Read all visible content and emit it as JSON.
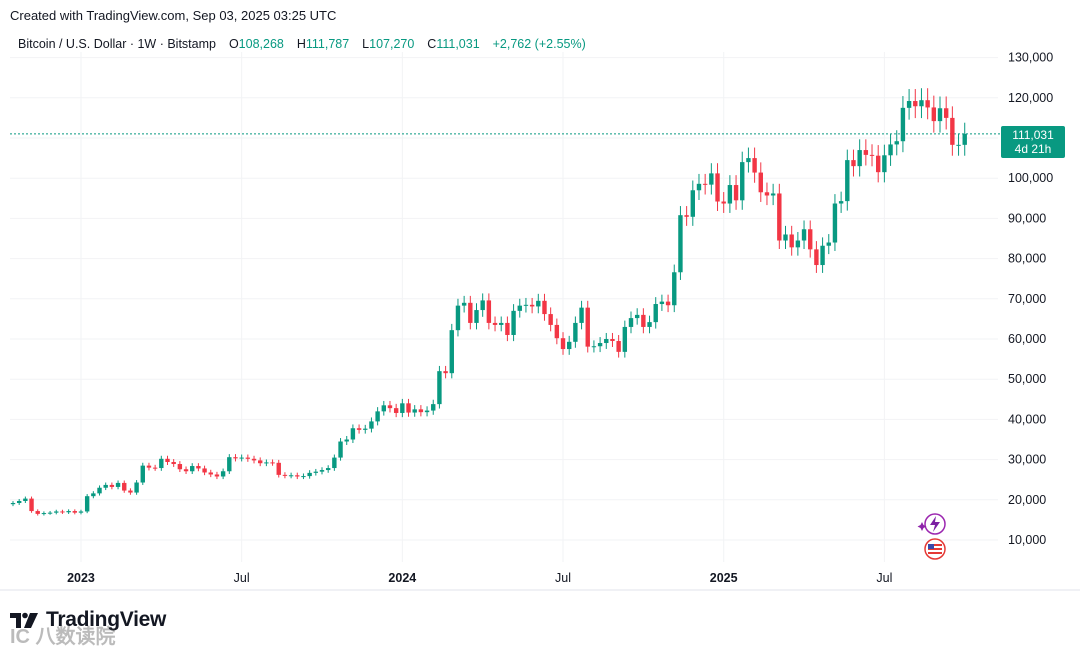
{
  "header": {
    "created_text": "Created with TradingView.com, Sep 03, 2025 03:25 UTC"
  },
  "legend": {
    "symbol": "Bitcoin / U.S. Dollar · 1W · Bitstamp",
    "o_label": "O",
    "o_value": "108,268",
    "h_label": "H",
    "h_value": "111,787",
    "l_label": "L",
    "l_value": "107,270",
    "c_label": "C",
    "c_value": "111,031",
    "change": "+2,762 (+2.55%)"
  },
  "price_tag": {
    "price": "111,031",
    "countdown": "4d 21h"
  },
  "branding": {
    "logo_text": "TradingView",
    "watermark": "IC 八数读院"
  },
  "colors": {
    "up": "#089981",
    "down": "#f23645",
    "grid": "#f2f3f5",
    "text": "#131722",
    "axis_text": "#131722"
  },
  "icons": [
    "logo-icon",
    "event-lightning-icon",
    "us-flag-icon"
  ],
  "chart_data": {
    "type": "candlestick",
    "timeframe": "1W",
    "ylim": [
      5000,
      135000
    ],
    "y_ticks": [
      10000,
      20000,
      30000,
      40000,
      50000,
      60000,
      70000,
      80000,
      90000,
      100000,
      110000,
      120000,
      130000
    ],
    "y_tick_labels": [
      "10,000",
      "20,000",
      "30,000",
      "40,000",
      "50,000",
      "60,000",
      "70,000",
      "80,000",
      "90,000",
      "100,000",
      "110,000",
      "120,000",
      "130,000"
    ],
    "x_labels": [
      {
        "week": 11,
        "text": "2023",
        "bold": true
      },
      {
        "week": 37,
        "text": "Jul",
        "bold": false
      },
      {
        "week": 63,
        "text": "2024",
        "bold": true
      },
      {
        "week": 89,
        "text": "Jul",
        "bold": false
      },
      {
        "week": 115,
        "text": "2025",
        "bold": true
      },
      {
        "week": 141,
        "text": "Jul",
        "bold": false
      }
    ],
    "last_price": 111031,
    "weekly_close": [
      19200,
      19700,
      20300,
      17200,
      16500,
      16700,
      16800,
      17100,
      16900,
      17200,
      16800,
      17100,
      20900,
      21600,
      23000,
      23700,
      23200,
      24200,
      22300,
      21800,
      24300,
      28500,
      28000,
      27900,
      30200,
      29400,
      28900,
      27600,
      27100,
      28400,
      27800,
      26800,
      26300,
      25800,
      27100,
      30600,
      30300,
      30500,
      30200,
      29800,
      29100,
      29300,
      29200,
      26200,
      26000,
      26100,
      25800,
      25900,
      26700,
      27000,
      27400,
      27900,
      30500,
      34500,
      35000,
      37800,
      37400,
      37700,
      39500,
      42000,
      43500,
      42800,
      41600,
      44000,
      41700,
      42500,
      41800,
      42200,
      43800,
      52000,
      51500,
      62200,
      68300,
      69000,
      64000,
      67200,
      69600,
      64000,
      63500,
      64000,
      61000,
      67000,
      68300,
      68500,
      68100,
      69500,
      66200,
      63500,
      60200,
      57500,
      59300,
      64000,
      67800,
      58100,
      58200,
      59000,
      60000,
      59500,
      56800,
      63000,
      65200,
      66000,
      63000,
      64200,
      68700,
      69300,
      68400,
      76600,
      90800,
      90400,
      97000,
      98600,
      98400,
      101200,
      94200,
      93700,
      98300,
      94500,
      104000,
      105000,
      101400,
      96500,
      95700,
      96200,
      84500,
      86000,
      82800,
      84500,
      87300,
      82300,
      78400,
      83200,
      84000,
      93700,
      94300,
      104500,
      103000,
      107000,
      105800,
      105600,
      101500,
      105700,
      108400,
      109200,
      117500,
      119200,
      117900,
      119400,
      117600,
      114200,
      117400,
      115000,
      108300,
      108300,
      111031
    ]
  }
}
